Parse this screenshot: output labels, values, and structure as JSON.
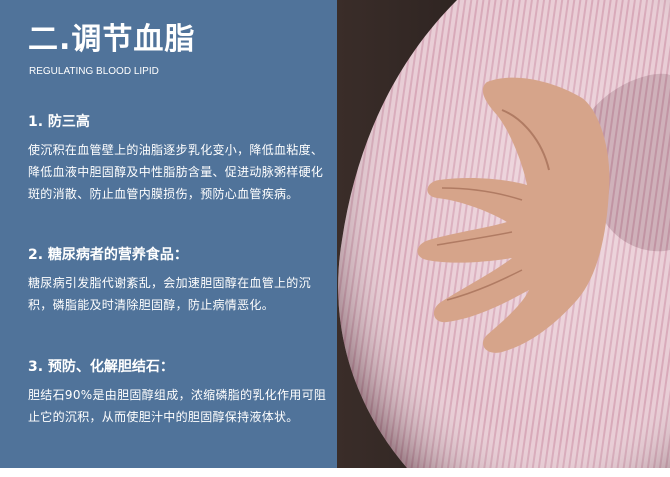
{
  "title": "二.调节血脂",
  "subtitle": "REGULATING BLOOD LIPID",
  "sections": [
    {
      "heading": "1. 防三高",
      "body": "使沉积在血管壁上的油脂逐步乳化变小，降低血粘度、降低血液中胆固醇及中性脂肪含量、促进动脉粥样硬化斑的消散、防止血管内膜损伤，预防心血管疾病。"
    },
    {
      "heading": "2. 糖尿病者的营养食品：",
      "body": "糖尿病引发脂代谢紊乱，会加速胆固醇在血管上的沉积，磷脂能及时清除胆固醇，防止病情恶化。"
    },
    {
      "heading": "3. 预防、化解胆结石：",
      "body": "胆结石90%是由胆固醇组成，浓缩磷脂的乳化作用可阻止它的沉积，从而使胆汁中的胆固醇保持液体状。"
    }
  ],
  "colors": {
    "panel": "#50739a",
    "shirt": "#e7c9d2",
    "shirt_stripe": "#d9a9b8",
    "skin": "#d8a68a",
    "background_dark": "#2a2220"
  }
}
